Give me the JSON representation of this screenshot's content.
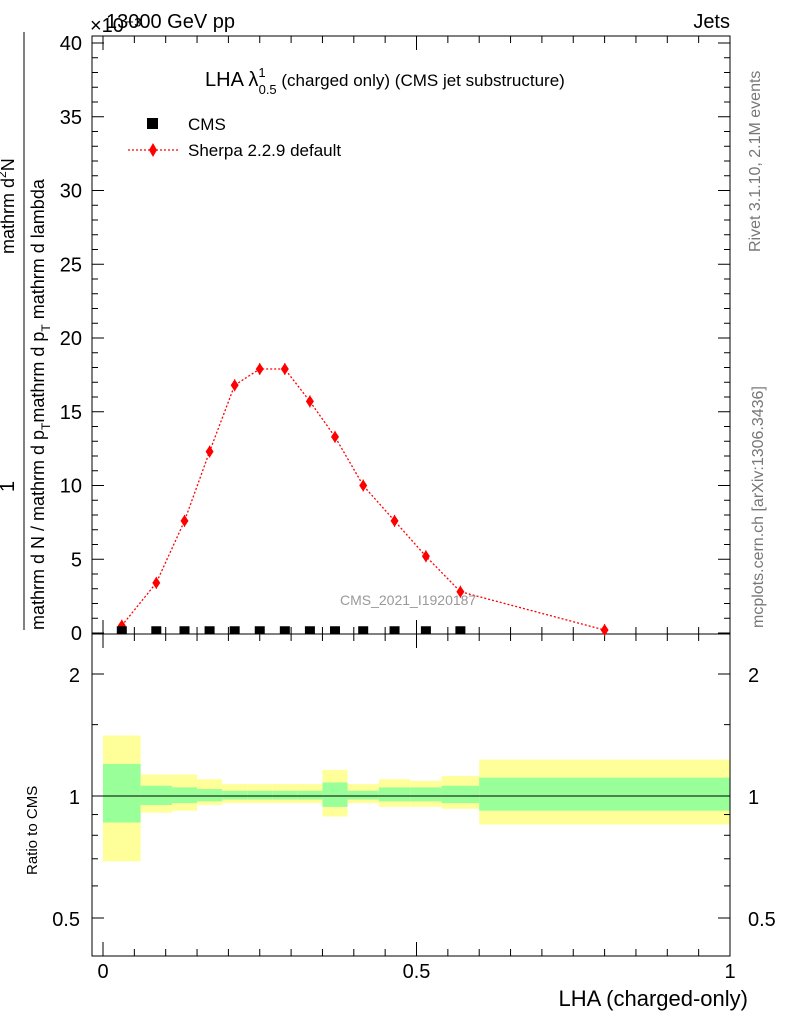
{
  "header": {
    "left": "13000 GeV pp",
    "right": "Jets",
    "exponent": "×10⁻³"
  },
  "title": {
    "main": "LHA λ",
    "sup": "1",
    "sub": "0.5",
    "rest": " (charged only) (CMS jet substructure)"
  },
  "legend": {
    "cms": "CMS",
    "mc": "Sherpa 2.2.9 default"
  },
  "ylabel_top": {
    "num": "1",
    "den": "mathrm d N / mathrm d p",
    "den_sub": "T",
    "den_rest": "mathrm d p",
    "den_sub2": "T",
    "den_tail": " mathrm d lambda",
    "num2": "mathrm d",
    "num2_sup": "2",
    "num2_rest": "N"
  },
  "ylabel_ratio": "Ratio to CMS",
  "xlabel": "LHA (charged-only)",
  "watermark": "CMS_2021_I1920187",
  "side_right_top": "Rivet 3.1.10,  2.1M events",
  "side_right_bottom": "mcplots.cern.ch [arXiv:1306.3436]",
  "colors": {
    "mc": "#ff0000",
    "band_inner": "#99ff99",
    "band_outer": "#ffff99",
    "data": "#000000"
  },
  "chart_data": {
    "type": "line",
    "main": {
      "yticks": [
        "0",
        "5",
        "10",
        "15",
        "20",
        "25",
        "30",
        "35",
        "40"
      ],
      "ylim": [
        0,
        40.5
      ],
      "yscale_factor": "1e-3",
      "data": {
        "name": "CMS",
        "x": [
          0.03,
          0.085,
          0.13,
          0.17,
          0.21,
          0.25,
          0.29,
          0.33,
          0.37,
          0.415,
          0.465,
          0.515,
          0.57
        ],
        "y": [
          0.05,
          0.05,
          0.05,
          0.05,
          0.05,
          0.05,
          0.05,
          0.05,
          0.05,
          0.05,
          0.05,
          0.05,
          0.05
        ]
      },
      "mc": {
        "name": "Sherpa 2.2.9 default",
        "x": [
          0.03,
          0.085,
          0.13,
          0.17,
          0.21,
          0.25,
          0.29,
          0.33,
          0.37,
          0.415,
          0.465,
          0.515,
          0.57,
          0.8
        ],
        "y": [
          0.5,
          3.4,
          7.6,
          12.3,
          16.8,
          17.9,
          17.9,
          15.7,
          13.3,
          10.0,
          7.6,
          5.2,
          2.8,
          0.2
        ]
      }
    },
    "ratio": {
      "yticks": [
        "0.5",
        "1",
        "2"
      ],
      "ylim": [
        0.4,
        2.5
      ],
      "yscale": "log",
      "bins": [
        {
          "lo": 0.0,
          "hi": 0.06,
          "in_lo": 0.86,
          "in_hi": 1.2,
          "out_lo": 0.69,
          "out_hi": 1.41
        },
        {
          "lo": 0.06,
          "hi": 0.11,
          "in_lo": 0.95,
          "in_hi": 1.06,
          "out_lo": 0.91,
          "out_hi": 1.13
        },
        {
          "lo": 0.11,
          "hi": 0.15,
          "in_lo": 0.96,
          "in_hi": 1.05,
          "out_lo": 0.92,
          "out_hi": 1.13
        },
        {
          "lo": 0.15,
          "hi": 0.19,
          "in_lo": 0.97,
          "in_hi": 1.04,
          "out_lo": 0.95,
          "out_hi": 1.1
        },
        {
          "lo": 0.19,
          "hi": 0.23,
          "in_lo": 0.98,
          "in_hi": 1.03,
          "out_lo": 0.96,
          "out_hi": 1.07
        },
        {
          "lo": 0.23,
          "hi": 0.27,
          "in_lo": 0.98,
          "in_hi": 1.03,
          "out_lo": 0.96,
          "out_hi": 1.07
        },
        {
          "lo": 0.27,
          "hi": 0.31,
          "in_lo": 0.98,
          "in_hi": 1.03,
          "out_lo": 0.96,
          "out_hi": 1.07
        },
        {
          "lo": 0.31,
          "hi": 0.35,
          "in_lo": 0.98,
          "in_hi": 1.03,
          "out_lo": 0.96,
          "out_hi": 1.07
        },
        {
          "lo": 0.35,
          "hi": 0.39,
          "in_lo": 0.94,
          "in_hi": 1.08,
          "out_lo": 0.89,
          "out_hi": 1.16
        },
        {
          "lo": 0.39,
          "hi": 0.44,
          "in_lo": 0.98,
          "in_hi": 1.03,
          "out_lo": 0.96,
          "out_hi": 1.07
        },
        {
          "lo": 0.44,
          "hi": 0.49,
          "in_lo": 0.97,
          "in_hi": 1.05,
          "out_lo": 0.94,
          "out_hi": 1.1
        },
        {
          "lo": 0.49,
          "hi": 0.54,
          "in_lo": 0.97,
          "in_hi": 1.05,
          "out_lo": 0.94,
          "out_hi": 1.09
        },
        {
          "lo": 0.54,
          "hi": 0.6,
          "in_lo": 0.96,
          "in_hi": 1.06,
          "out_lo": 0.93,
          "out_hi": 1.12
        },
        {
          "lo": 0.6,
          "hi": 1.0,
          "in_lo": 0.92,
          "in_hi": 1.11,
          "out_lo": 0.85,
          "out_hi": 1.23
        }
      ]
    },
    "x": {
      "xlim": [
        0,
        1
      ],
      "xticks": [
        "0",
        "0.5",
        "1"
      ]
    }
  }
}
